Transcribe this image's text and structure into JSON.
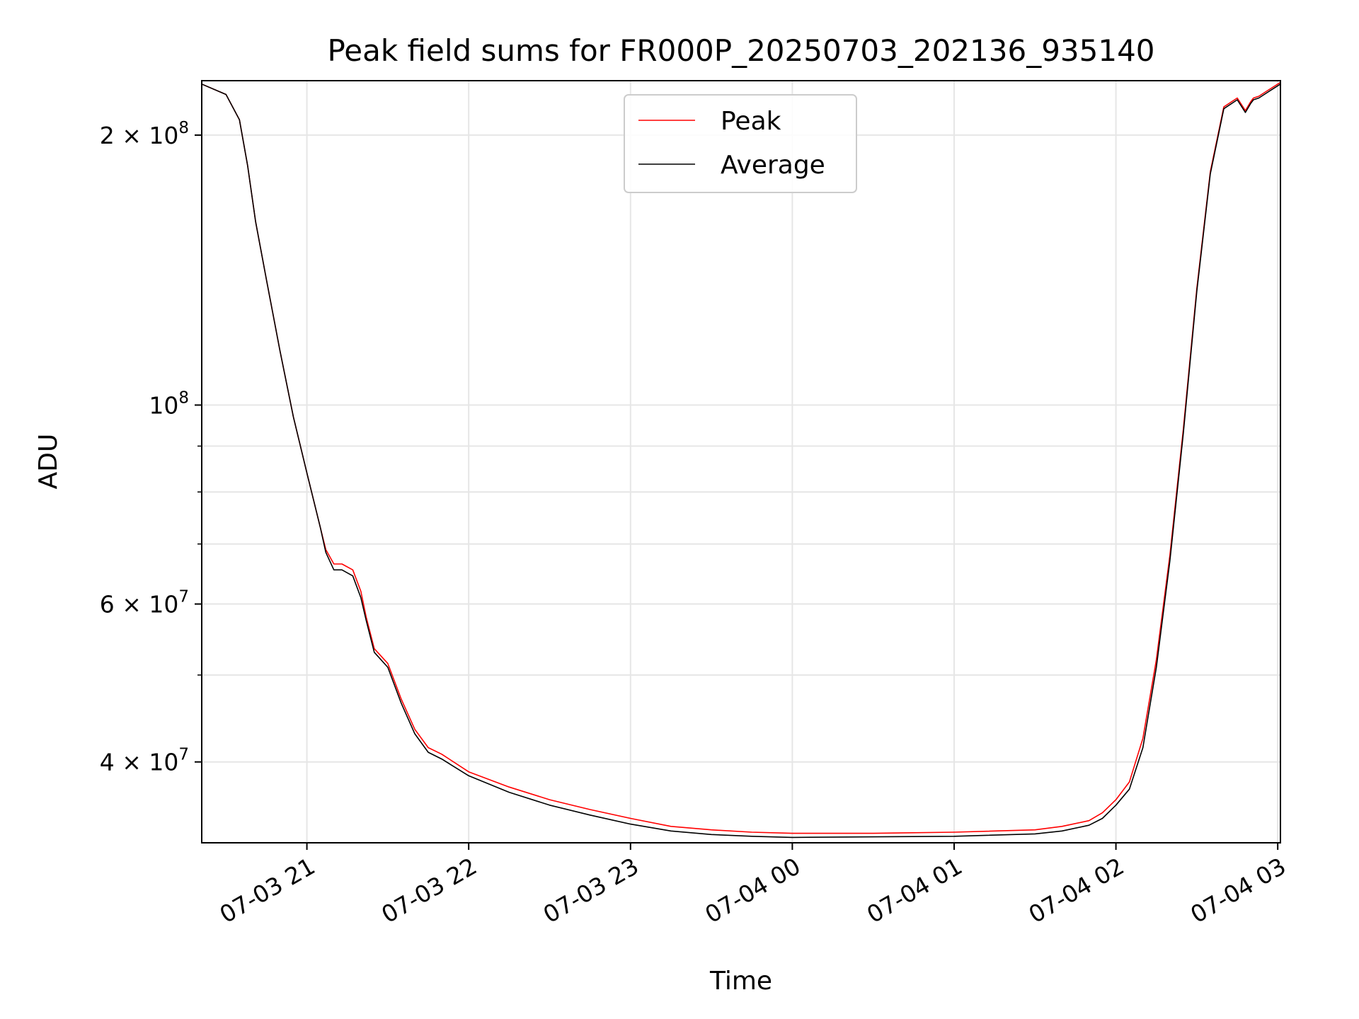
{
  "chart_data": {
    "type": "line",
    "title": "Peak field sums for FR000P_20250703_202136_935140",
    "xlabel": "Time",
    "ylabel": "ADU",
    "yscale": "log",
    "xlim": [
      "2025-07-03 20:21",
      "2025-07-04 03:01"
    ],
    "ylim": [
      32500000,
      230000000
    ],
    "grid": true,
    "legend_position": "upper center",
    "x_tick_labels": [
      "07-03 21",
      "07-03 22",
      "07-03 23",
      "07-04 00",
      "07-04 01",
      "07-04 02",
      "07-04 03"
    ],
    "x_ticks": [
      "2025-07-03 21:00",
      "2025-07-03 22:00",
      "2025-07-03 23:00",
      "2025-07-04 00:00",
      "2025-07-04 01:00",
      "2025-07-04 02:00",
      "2025-07-04 03:00"
    ],
    "y_major_ticks": [
      {
        "value": 40000000,
        "base": "4 × 10",
        "exp": "7"
      },
      {
        "value": 60000000,
        "base": "6 × 10",
        "exp": "7"
      },
      {
        "value": 100000000,
        "base": "10",
        "exp": "8"
      },
      {
        "value": 200000000,
        "base": "2 × 10",
        "exp": "8"
      }
    ],
    "y_minor_ticks": [
      50000000,
      70000000,
      80000000,
      90000000
    ],
    "x": [
      "2025-07-03 20:21",
      "2025-07-03 20:30",
      "2025-07-03 20:35",
      "2025-07-03 20:38",
      "2025-07-03 20:41",
      "2025-07-03 20:45",
      "2025-07-03 20:50",
      "2025-07-03 20:55",
      "2025-07-03 21:00",
      "2025-07-03 21:05",
      "2025-07-03 21:07",
      "2025-07-03 21:10",
      "2025-07-03 21:13",
      "2025-07-03 21:17",
      "2025-07-03 21:20",
      "2025-07-03 21:22",
      "2025-07-03 21:25",
      "2025-07-03 21:30",
      "2025-07-03 21:35",
      "2025-07-03 21:40",
      "2025-07-03 21:45",
      "2025-07-03 21:50",
      "2025-07-03 22:00",
      "2025-07-03 22:15",
      "2025-07-03 22:30",
      "2025-07-03 22:45",
      "2025-07-03 23:00",
      "2025-07-03 23:15",
      "2025-07-03 23:30",
      "2025-07-03 23:45",
      "2025-07-04 00:00",
      "2025-07-04 00:30",
      "2025-07-04 01:00",
      "2025-07-04 01:30",
      "2025-07-04 01:40",
      "2025-07-04 01:50",
      "2025-07-04 01:55",
      "2025-07-04 02:00",
      "2025-07-04 02:05",
      "2025-07-04 02:10",
      "2025-07-04 02:15",
      "2025-07-04 02:20",
      "2025-07-04 02:25",
      "2025-07-04 02:30",
      "2025-07-04 02:35",
      "2025-07-04 02:40",
      "2025-07-04 02:45",
      "2025-07-04 02:48",
      "2025-07-04 02:50",
      "2025-07-04 02:51",
      "2025-07-04 02:53",
      "2025-07-04 02:56",
      "2025-07-04 03:01"
    ],
    "series": [
      {
        "name": "Peak",
        "color": "#ff0000",
        "values": [
          228000000,
          222000000,
          208000000,
          185000000,
          160000000,
          138000000,
          115000000,
          97000000,
          84000000,
          73000000,
          69000000,
          66500000,
          66500000,
          65500000,
          62000000,
          58000000,
          53500000,
          51500000,
          47000000,
          43500000,
          41500000,
          40800000,
          39000000,
          37500000,
          36300000,
          35400000,
          34600000,
          33900000,
          33600000,
          33400000,
          33300000,
          33300000,
          33400000,
          33600000,
          33900000,
          34400000,
          35100000,
          36300000,
          38000000,
          42500000,
          52000000,
          68000000,
          94000000,
          135000000,
          182000000,
          215000000,
          220000000,
          213000000,
          218000000,
          220000000,
          221000000,
          224000000,
          229000000
        ]
      },
      {
        "name": "Average",
        "color": "#000000",
        "values": [
          228000000,
          222000000,
          208000000,
          185000000,
          160000000,
          138000000,
          115000000,
          97000000,
          84000000,
          73000000,
          68500000,
          65500000,
          65500000,
          64500000,
          61000000,
          57500000,
          53000000,
          51000000,
          46500000,
          43000000,
          41000000,
          40300000,
          38600000,
          37000000,
          35800000,
          34900000,
          34100000,
          33500000,
          33200000,
          33050000,
          32950000,
          33000000,
          33050000,
          33250000,
          33500000,
          34000000,
          34600000,
          35800000,
          37300000,
          41500000,
          51000000,
          67000000,
          93000000,
          134000000,
          181000000,
          214000000,
          219000000,
          212000000,
          217000000,
          219000000,
          220000000,
          223000000,
          228000000
        ]
      }
    ]
  }
}
